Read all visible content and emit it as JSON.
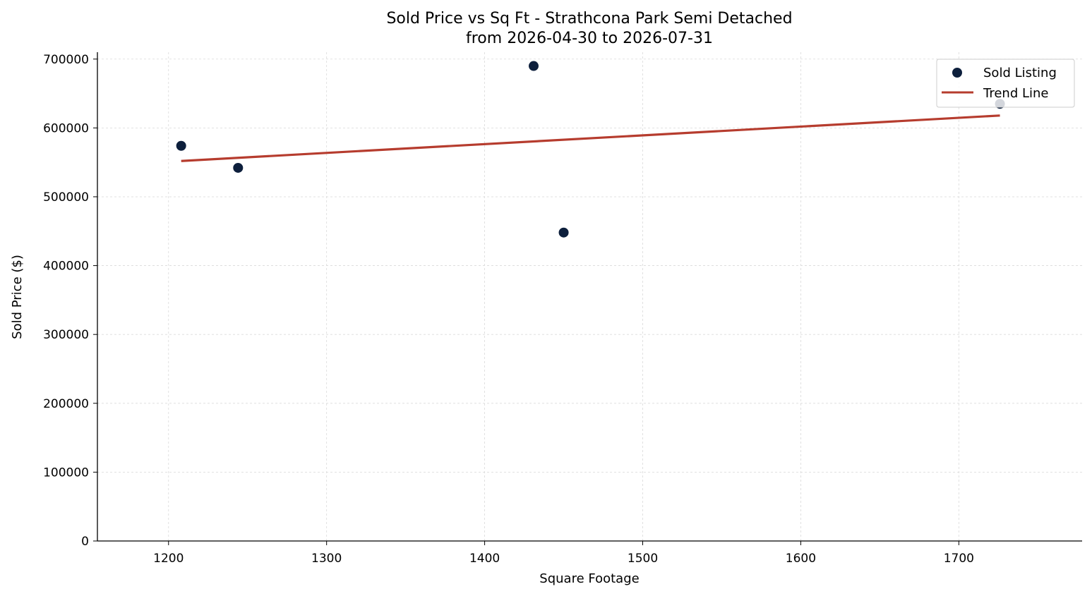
{
  "chart_data": {
    "type": "scatter",
    "title": "Sold Price vs Sq Ft - Strathcona Park Semi Detached",
    "subtitle": "from 2026-04-30 to 2026-07-31",
    "xlabel": "Square Footage",
    "ylabel": "Sold Price ($)",
    "xlim": [
      1155,
      1778
    ],
    "ylim": [
      0,
      710000
    ],
    "xticks": [
      1200,
      1300,
      1400,
      1500,
      1600,
      1700
    ],
    "yticks": [
      0,
      100000,
      200000,
      300000,
      400000,
      500000,
      600000,
      700000
    ],
    "grid": true,
    "legend_position": "top-right",
    "series": [
      {
        "name": "Sold Listing",
        "kind": "scatter",
        "color": "#0d1f3c",
        "points": [
          {
            "x": 1208,
            "y": 574000
          },
          {
            "x": 1244,
            "y": 542000
          },
          {
            "x": 1431,
            "y": 690000
          },
          {
            "x": 1450,
            "y": 448000
          },
          {
            "x": 1726,
            "y": 635000
          }
        ]
      },
      {
        "name": "Trend Line",
        "kind": "line",
        "color": "#b63c2e",
        "points": [
          {
            "x": 1208,
            "y": 552000
          },
          {
            "x": 1726,
            "y": 618000
          }
        ]
      }
    ]
  }
}
